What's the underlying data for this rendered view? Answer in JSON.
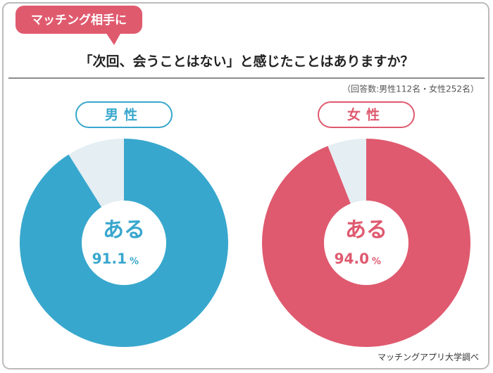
{
  "badge": "マッチング相手に",
  "title": "「次回、会うことはない」と感じたことはありますか？",
  "note": "（回答数:男性112名・女性252名）",
  "source": "マッチングアプリ大学調べ",
  "chart_data": [
    {
      "type": "pie",
      "label": "男性",
      "categories": [
        "ある",
        null
      ],
      "values": [
        91.1,
        8.9
      ],
      "value_labels": [
        "91.1",
        null
      ],
      "unit": "%",
      "colors": [
        "#38a7cd",
        "#e4eef3"
      ]
    },
    {
      "type": "pie",
      "label": "女性",
      "categories": [
        "ある",
        null
      ],
      "values": [
        94.0,
        6.0
      ],
      "value_labels": [
        "94.0",
        null
      ],
      "unit": "%",
      "colors": [
        "#df5a6f",
        "#e4eef3"
      ]
    }
  ]
}
